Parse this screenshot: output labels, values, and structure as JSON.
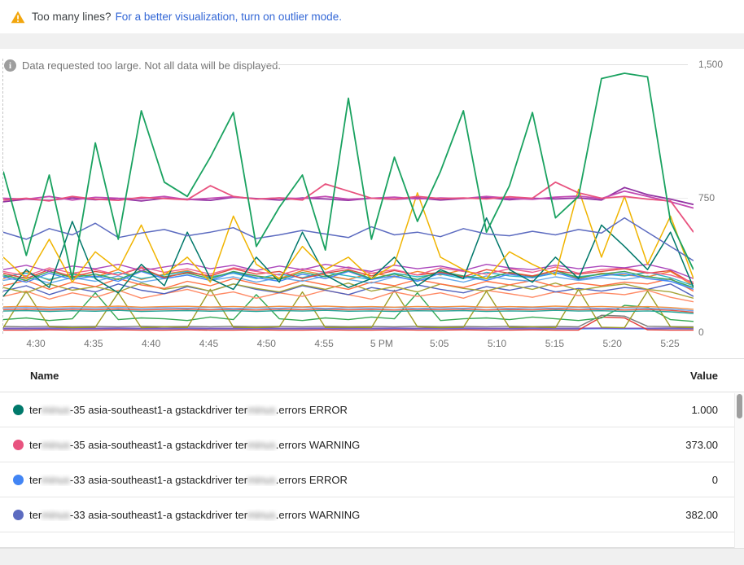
{
  "banner": {
    "warning_icon": "warning-triangle",
    "text": "Too many lines?",
    "link": "For a better visualization, turn on outlier mode.",
    "link_color": "#3367d6",
    "warning_color": "#f2a60d"
  },
  "notice": {
    "icon": "info-circle",
    "text": "Data requested too large. Not all data will be displayed."
  },
  "chart_data": {
    "type": "line",
    "title": "",
    "xlabel": "",
    "ylabel": "",
    "ylim": [
      0,
      1500
    ],
    "grid": "horizontal",
    "legend_position": "table-below",
    "x_labels": [
      "4:30",
      "4:35",
      "4:40",
      "4:45",
      "4:50",
      "4:55",
      "5 PM",
      "5:05",
      "5:10",
      "5:15",
      "5:20",
      "5:25"
    ],
    "y_ticks": [
      {
        "label": "1,500",
        "value": 1500
      },
      {
        "label": "750",
        "value": 750
      },
      {
        "label": "0",
        "value": 0
      }
    ],
    "series": [
      {
        "id": "bot-blue",
        "color": "#5c9ded",
        "w": 1.4,
        "values": [
          18,
          18,
          19,
          18,
          18,
          19,
          18,
          18,
          19,
          18,
          18,
          19,
          18,
          18,
          19,
          18,
          18,
          19,
          18,
          18,
          19,
          18,
          18,
          19,
          18,
          18,
          19,
          18,
          18,
          19,
          18
        ]
      },
      {
        "id": "bot-purple",
        "color": "#7e57c2",
        "w": 1.4,
        "values": [
          22,
          22,
          23,
          22,
          22,
          23,
          22,
          22,
          23,
          22,
          22,
          23,
          22,
          22,
          23,
          22,
          22,
          23,
          22,
          22,
          23,
          22,
          22,
          23,
          22,
          22,
          23,
          22,
          22,
          23,
          22
        ]
      },
      {
        "id": "bot-red",
        "color": "#e53935",
        "w": 1.4,
        "values": [
          12,
          12,
          13,
          12,
          12,
          13,
          12,
          12,
          13,
          12,
          12,
          13,
          12,
          12,
          13,
          12,
          12,
          13,
          12,
          12,
          13,
          12,
          12,
          13,
          12,
          12,
          85,
          80,
          13,
          12,
          12
        ]
      },
      {
        "id": "bot-gray",
        "color": "#7a7a7a",
        "w": 1.4,
        "values": [
          32,
          30,
          33,
          31,
          32,
          30,
          33,
          31,
          32,
          30,
          33,
          31,
          32,
          30,
          33,
          31,
          32,
          30,
          33,
          31,
          32,
          30,
          33,
          31,
          32,
          30,
          95,
          90,
          33,
          31,
          30
        ]
      },
      {
        "id": "green-low",
        "color": "#34a853",
        "w": 1.4,
        "values": [
          70,
          80,
          65,
          75,
          220,
          70,
          80,
          75,
          65,
          85,
          70,
          210,
          75,
          65,
          80,
          70,
          85,
          75,
          220,
          65,
          75,
          80,
          70,
          85,
          75,
          65,
          80,
          150,
          140,
          70,
          60
        ]
      },
      {
        "id": "olive-spiky",
        "color": "#9e9d24",
        "w": 1.4,
        "values": [
          25,
          230,
          30,
          25,
          28,
          220,
          25,
          30,
          26,
          240,
          28,
          25,
          30,
          225,
          26,
          28,
          25,
          235,
          30,
          25,
          28,
          230,
          26,
          30,
          25,
          240,
          28,
          25,
          230,
          30,
          25
        ]
      },
      {
        "id": "flat-teal",
        "color": "#26a69a",
        "w": 1.4,
        "values": [
          118,
          121,
          116,
          120,
          117,
          122,
          116,
          119,
          121,
          117,
          120,
          116,
          121,
          118,
          122,
          117,
          119,
          116,
          120,
          118,
          121,
          116,
          119,
          117,
          122,
          118,
          120,
          116,
          119,
          114,
          105
        ]
      },
      {
        "id": "flat-red",
        "color": "#e25544",
        "w": 1.4,
        "values": [
          126,
          129,
          124,
          128,
          125,
          130,
          124,
          127,
          129,
          125,
          128,
          124,
          129,
          126,
          130,
          125,
          127,
          124,
          128,
          126,
          129,
          124,
          127,
          125,
          130,
          126,
          128,
          124,
          127,
          122,
          112
        ]
      },
      {
        "id": "flat-blue",
        "color": "#6fa8f5",
        "w": 1.4,
        "values": [
          135,
          138,
          132,
          136,
          134,
          139,
          133,
          137,
          135,
          138,
          132,
          136,
          134,
          139,
          133,
          137,
          135,
          138,
          132,
          136,
          134,
          139,
          133,
          137,
          135,
          138,
          132,
          136,
          134,
          130,
          120
        ]
      },
      {
        "id": "flat-orange",
        "color": "#f59342",
        "w": 1.4,
        "values": [
          142,
          145,
          140,
          144,
          141,
          146,
          140,
          143,
          145,
          141,
          144,
          140,
          145,
          142,
          146,
          141,
          143,
          140,
          144,
          142,
          145,
          140,
          143,
          141,
          146,
          142,
          144,
          140,
          143,
          138,
          128
        ]
      },
      {
        "id": "salmon",
        "color": "#ff8a65",
        "w": 1.4,
        "values": [
          200,
          230,
          185,
          220,
          195,
          235,
          190,
          215,
          240,
          205,
          225,
          190,
          220,
          200,
          235,
          210,
          185,
          225,
          200,
          220,
          190,
          235,
          215,
          195,
          225,
          205,
          220,
          210,
          235,
          195,
          170
        ]
      },
      {
        "id": "royal-blue",
        "color": "#5161bd",
        "w": 1.4,
        "values": [
          230,
          260,
          210,
          250,
          225,
          270,
          235,
          215,
          255,
          230,
          270,
          240,
          220,
          260,
          235,
          210,
          250,
          230,
          265,
          240,
          220,
          255,
          235,
          260,
          225,
          245,
          230,
          250,
          240,
          270,
          200
        ]
      },
      {
        "id": "olive-band",
        "color": "#a6a437",
        "w": 1.4,
        "values": [
          250,
          220,
          270,
          235,
          255,
          225,
          275,
          240,
          260,
          230,
          270,
          245,
          225,
          265,
          240,
          275,
          230,
          255,
          225,
          270,
          245,
          230,
          265,
          240,
          275,
          235,
          255,
          270,
          240,
          225,
          190
        ]
      },
      {
        "id": "deep-orange",
        "color": "#ff7043",
        "w": 1.4,
        "values": [
          260,
          290,
          240,
          280,
          255,
          300,
          265,
          245,
          285,
          260,
          300,
          270,
          250,
          290,
          265,
          240,
          280,
          260,
          295,
          270,
          250,
          285,
          265,
          290,
          255,
          275,
          260,
          280,
          270,
          300,
          230
        ]
      },
      {
        "id": "light-blue",
        "color": "#67a9ea",
        "w": 1.4,
        "values": [
          290,
          310,
          275,
          305,
          285,
          315,
          280,
          300,
          320,
          290,
          310,
          280,
          305,
          285,
          315,
          295,
          275,
          310,
          290,
          305,
          280,
          315,
          295,
          285,
          310,
          290,
          305,
          295,
          315,
          285,
          250
        ]
      },
      {
        "id": "orange",
        "color": "#f4862c",
        "w": 1.4,
        "values": [
          300,
          340,
          290,
          330,
          310,
          350,
          295,
          325,
          345,
          305,
          335,
          315,
          300,
          345,
          320,
          295,
          330,
          310,
          340,
          320,
          350,
          300,
          335,
          315,
          345,
          300,
          330,
          320,
          310,
          340,
          260
        ]
      },
      {
        "id": "cyan",
        "color": "#2bb6c9",
        "w": 1.4,
        "values": [
          310,
          330,
          295,
          325,
          305,
          335,
          300,
          320,
          340,
          310,
          330,
          300,
          325,
          305,
          335,
          315,
          295,
          330,
          310,
          325,
          300,
          335,
          315,
          305,
          330,
          310,
          325,
          315,
          335,
          305,
          260
        ]
      },
      {
        "id": "blue",
        "color": "#4285f4",
        "w": 1.4,
        "values": [
          310,
          280,
          330,
          295,
          315,
          285,
          340,
          300,
          320,
          290,
          335,
          305,
          285,
          325,
          300,
          340,
          295,
          315,
          285,
          330,
          310,
          290,
          325,
          305,
          335,
          295,
          315,
          330,
          300,
          285,
          240
        ]
      },
      {
        "id": "green-band",
        "color": "#3ba55d",
        "w": 1.4,
        "values": [
          320,
          290,
          340,
          305,
          325,
          295,
          345,
          310,
          330,
          300,
          340,
          315,
          295,
          335,
          310,
          345,
          300,
          325,
          295,
          340,
          315,
          300,
          335,
          310,
          345,
          305,
          325,
          340,
          310,
          295,
          250
        ]
      },
      {
        "id": "red",
        "color": "#e04a3f",
        "w": 1.4,
        "values": [
          330,
          300,
          350,
          310,
          340,
          320,
          360,
          305,
          335,
          315,
          355,
          325,
          340,
          300,
          330,
          350,
          315,
          345,
          320,
          335,
          310,
          350,
          330,
          315,
          345,
          325,
          340,
          355,
          330,
          345,
          270
        ]
      },
      {
        "id": "pink-band",
        "color": "#ef6292",
        "w": 1.4,
        "values": [
          340,
          315,
          360,
          330,
          350,
          320,
          365,
          335,
          355,
          325,
          360,
          340,
          320,
          355,
          335,
          365,
          330,
          350,
          320,
          360,
          340,
          325,
          355,
          335,
          365,
          330,
          350,
          360,
          335,
          320,
          280
        ]
      },
      {
        "id": "violet-band",
        "color": "#ab47bc",
        "w": 1.4,
        "values": [
          350,
          375,
          340,
          370,
          355,
          380,
          345,
          365,
          385,
          355,
          375,
          345,
          370,
          350,
          380,
          360,
          340,
          375,
          355,
          370,
          345,
          380,
          360,
          350,
          375,
          355,
          370,
          360,
          380,
          350,
          300
        ]
      },
      {
        "id": "dark-teal",
        "color": "#00786a",
        "w": 1.5,
        "values": [
          200,
          350,
          250,
          620,
          300,
          220,
          380,
          260,
          560,
          300,
          240,
          420,
          280,
          560,
          320,
          250,
          300,
          420,
          260,
          350,
          300,
          640,
          350,
          280,
          420,
          300,
          600,
          480,
          350,
          560,
          250
        ]
      },
      {
        "id": "yellow",
        "color": "#f0b400",
        "w": 1.5,
        "values": [
          420,
          300,
          520,
          280,
          450,
          350,
          600,
          320,
          420,
          280,
          650,
          380,
          300,
          480,
          350,
          420,
          300,
          380,
          780,
          420,
          350,
          300,
          450,
          380,
          320,
          800,
          420,
          760,
          380,
          650,
          300
        ]
      },
      {
        "id": "indigo",
        "color": "#5c6bc0",
        "w": 1.5,
        "values": [
          560,
          520,
          580,
          545,
          610,
          530,
          555,
          575,
          540,
          560,
          585,
          525,
          545,
          570,
          550,
          530,
          590,
          545,
          560,
          535,
          580,
          550,
          540,
          565,
          545,
          575,
          555,
          640,
          560,
          480,
          400
        ]
      },
      {
        "id": "purple",
        "color": "#9334a3",
        "w": 1.8,
        "values": [
          730,
          745,
          738,
          752,
          742,
          748,
          735,
          750,
          744,
          738,
          756,
          748,
          740,
          752,
          746,
          738,
          750,
          744,
          752,
          740,
          748,
          754,
          742,
          750,
          746,
          752,
          740,
          810,
          770,
          745,
          715
        ]
      },
      {
        "id": "magenta",
        "color": "#c24bb3",
        "w": 1.8,
        "values": [
          750,
          745,
          760,
          740,
          755,
          750,
          748,
          760,
          742,
          750,
          758,
          746,
          752,
          748,
          760,
          744,
          750,
          756,
          746,
          752,
          748,
          760,
          750,
          744,
          756,
          762,
          748,
          790,
          760,
          730,
          695
        ]
      },
      {
        "id": "pink",
        "color": "#e8537f",
        "w": 1.8,
        "values": [
          740,
          750,
          735,
          760,
          745,
          738,
          755,
          748,
          742,
          820,
          760,
          745,
          752,
          740,
          830,
          790,
          750,
          745,
          760,
          748,
          752,
          746,
          758,
          750,
          840,
          780,
          750,
          760,
          745,
          735,
          560
        ]
      },
      {
        "id": "green-spiky",
        "color": "#1aa260",
        "w": 1.8,
        "values": [
          900,
          430,
          880,
          300,
          1060,
          520,
          1240,
          840,
          760,
          980,
          1230,
          480,
          700,
          880,
          460,
          1310,
          520,
          980,
          620,
          900,
          1240,
          560,
          820,
          1230,
          640,
          760,
          1420,
          1450,
          1430,
          620,
          350
        ]
      }
    ]
  },
  "legend": {
    "columns": {
      "name": "Name",
      "value": "Value"
    },
    "rows": [
      {
        "color": "#00796b",
        "name_pre": "ter",
        "name_blur1": "minus",
        "name_mid": "-35 asia-southeast1-a gstackdriver ter",
        "name_blur2": "minus",
        "name_post": ".errors ERROR",
        "value": "1.000"
      },
      {
        "color": "#e8537f",
        "name_pre": "ter",
        "name_blur1": "minus",
        "name_mid": "-35 asia-southeast1-a gstackdriver ter",
        "name_blur2": "minus",
        "name_post": ".errors WARNING",
        "value": "373.00"
      },
      {
        "color": "#4285f4",
        "name_pre": "ter",
        "name_blur1": "minus",
        "name_mid": "-33 asia-southeast1-a gstackdriver ter",
        "name_blur2": "minus",
        "name_post": ".errors ERROR",
        "value": "0"
      },
      {
        "color": "#5c6bc0",
        "name_pre": "ter",
        "name_blur1": "minus",
        "name_mid": "-33 asia-southeast1-a gstackdriver ter",
        "name_blur2": "minus",
        "name_post": ".errors WARNING",
        "value": "382.00"
      }
    ]
  }
}
